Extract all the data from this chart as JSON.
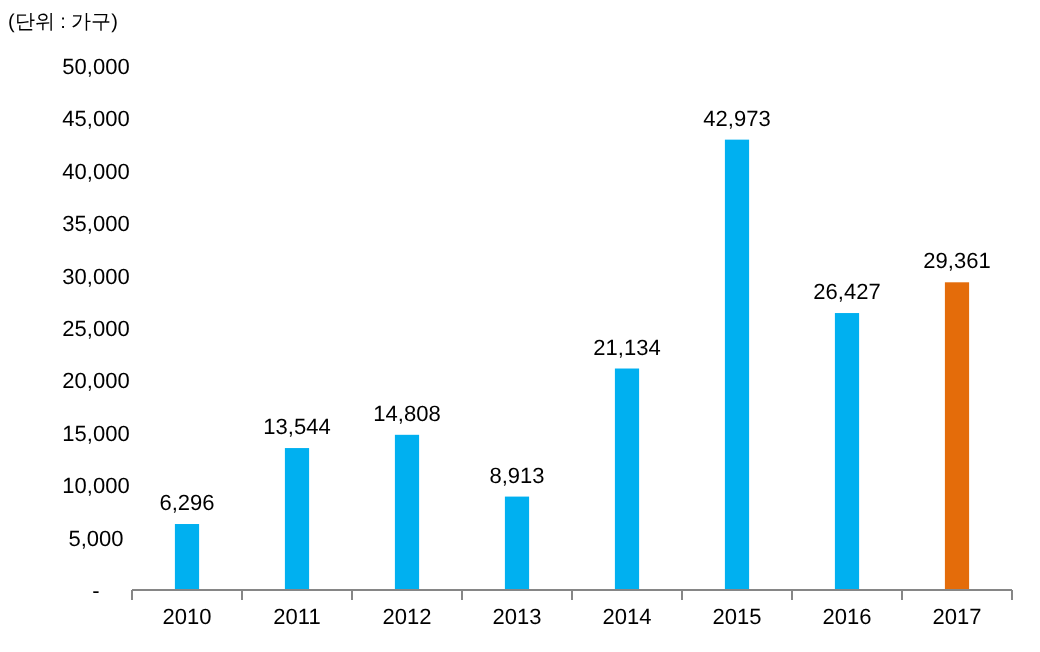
{
  "chart_data": {
    "type": "bar",
    "categories": [
      "2010",
      "2011",
      "2012",
      "2013",
      "2014",
      "2015",
      "2016",
      "2017"
    ],
    "values": [
      6296,
      13544,
      14808,
      8913,
      21134,
      42973,
      26427,
      29361
    ],
    "colors": [
      "#00b0f0",
      "#00b0f0",
      "#00b0f0",
      "#00b0f0",
      "#00b0f0",
      "#00b0f0",
      "#00b0f0",
      "#e46c0a"
    ],
    "value_labels": [
      "6,296",
      "13,544",
      "14,808",
      "8,913",
      "21,134",
      "42,973",
      "26,427",
      "29,361"
    ],
    "ylim": [
      0,
      50000
    ],
    "yticks": [
      {
        "value": 0,
        "label": "-"
      },
      {
        "value": 5000,
        "label": "5,000"
      },
      {
        "value": 10000,
        "label": "10,000"
      },
      {
        "value": 15000,
        "label": "15,000"
      },
      {
        "value": 20000,
        "label": "20,000"
      },
      {
        "value": 25000,
        "label": "25,000"
      },
      {
        "value": 30000,
        "label": "30,000"
      },
      {
        "value": 35000,
        "label": "35,000"
      },
      {
        "value": 40000,
        "label": "40,000"
      },
      {
        "value": 45000,
        "label": "45,000"
      },
      {
        "value": 50000,
        "label": "50,000"
      }
    ],
    "annotations": [
      "(단위 : 가구)"
    ]
  }
}
